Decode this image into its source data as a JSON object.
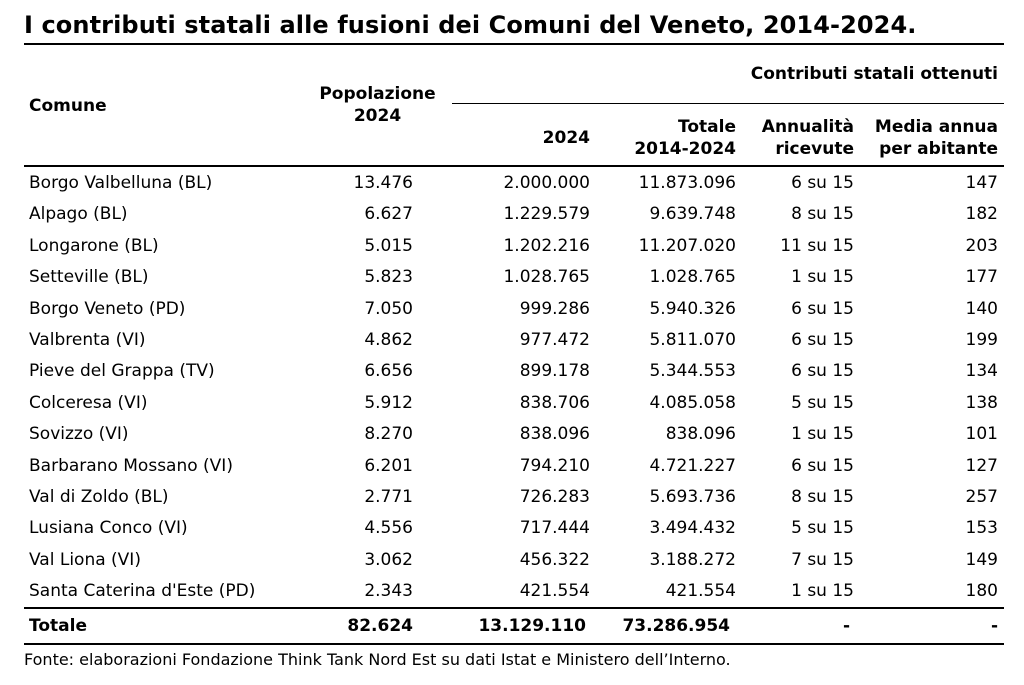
{
  "chart_data": {
    "type": "table",
    "title": "I contributi statali alle fusioni dei Comuni del Veneto, 2014-2024.",
    "group_header": "Contributi statali ottenuti",
    "columns": [
      {
        "key": "comune",
        "label": "Comune"
      },
      {
        "key": "pop",
        "label_line1": "Popolazione",
        "label_line2": "2024"
      },
      {
        "key": "c2024",
        "label_line1": "",
        "label_line2": "2024"
      },
      {
        "key": "totale",
        "label_line1": "Totale",
        "label_line2": "2014-2024"
      },
      {
        "key": "annualita",
        "label_line1": "Annualità",
        "label_line2": "ricevute"
      },
      {
        "key": "media",
        "label_line1": "Media annua",
        "label_line2": "per abitante"
      }
    ],
    "rows": [
      {
        "comune": "Borgo Valbelluna (BL)",
        "pop": "13.476",
        "c2024": "2.000.000",
        "totale": "11.873.096",
        "annualita": "6 su 15",
        "media": "147"
      },
      {
        "comune": "Alpago (BL)",
        "pop": "6.627",
        "c2024": "1.229.579",
        "totale": "9.639.748",
        "annualita": "8 su 15",
        "media": "182"
      },
      {
        "comune": "Longarone (BL)",
        "pop": "5.015",
        "c2024": "1.202.216",
        "totale": "11.207.020",
        "annualita": "11 su 15",
        "media": "203"
      },
      {
        "comune": "Setteville (BL)",
        "pop": "5.823",
        "c2024": "1.028.765",
        "totale": "1.028.765",
        "annualita": "1 su 15",
        "media": "177"
      },
      {
        "comune": "Borgo Veneto (PD)",
        "pop": "7.050",
        "c2024": "999.286",
        "totale": "5.940.326",
        "annualita": "6 su 15",
        "media": "140"
      },
      {
        "comune": "Valbrenta (VI)",
        "pop": "4.862",
        "c2024": "977.472",
        "totale": "5.811.070",
        "annualita": "6 su 15",
        "media": "199"
      },
      {
        "comune": "Pieve del Grappa (TV)",
        "pop": "6.656",
        "c2024": "899.178",
        "totale": "5.344.553",
        "annualita": "6 su 15",
        "media": "134"
      },
      {
        "comune": "Colceresa (VI)",
        "pop": "5.912",
        "c2024": "838.706",
        "totale": "4.085.058",
        "annualita": "5 su 15",
        "media": "138"
      },
      {
        "comune": "Sovizzo (VI)",
        "pop": "8.270",
        "c2024": "838.096",
        "totale": "838.096",
        "annualita": "1 su 15",
        "media": "101"
      },
      {
        "comune": "Barbarano Mossano (VI)",
        "pop": "6.201",
        "c2024": "794.210",
        "totale": "4.721.227",
        "annualita": "6 su 15",
        "media": "127"
      },
      {
        "comune": "Val di Zoldo (BL)",
        "pop": "2.771",
        "c2024": "726.283",
        "totale": "5.693.736",
        "annualita": "8 su 15",
        "media": "257"
      },
      {
        "comune": "Lusiana Conco (VI)",
        "pop": "4.556",
        "c2024": "717.444",
        "totale": "3.494.432",
        "annualita": "5 su 15",
        "media": "153"
      },
      {
        "comune": "Val Liona (VI)",
        "pop": "3.062",
        "c2024": "456.322",
        "totale": "3.188.272",
        "annualita": "7 su 15",
        "media": "149"
      },
      {
        "comune": "Santa Caterina d'Este (PD)",
        "pop": "2.343",
        "c2024": "421.554",
        "totale": "421.554",
        "annualita": "1 su 15",
        "media": "180"
      }
    ],
    "total": {
      "comune": "Totale",
      "pop": "82.624",
      "c2024": "13.129.110",
      "totale": "73.286.954",
      "annualita": "-",
      "media": "-"
    },
    "source": "Fonte: elaborazioni Fondazione Think Tank Nord Est su dati Istat e Ministero dell’Interno."
  }
}
